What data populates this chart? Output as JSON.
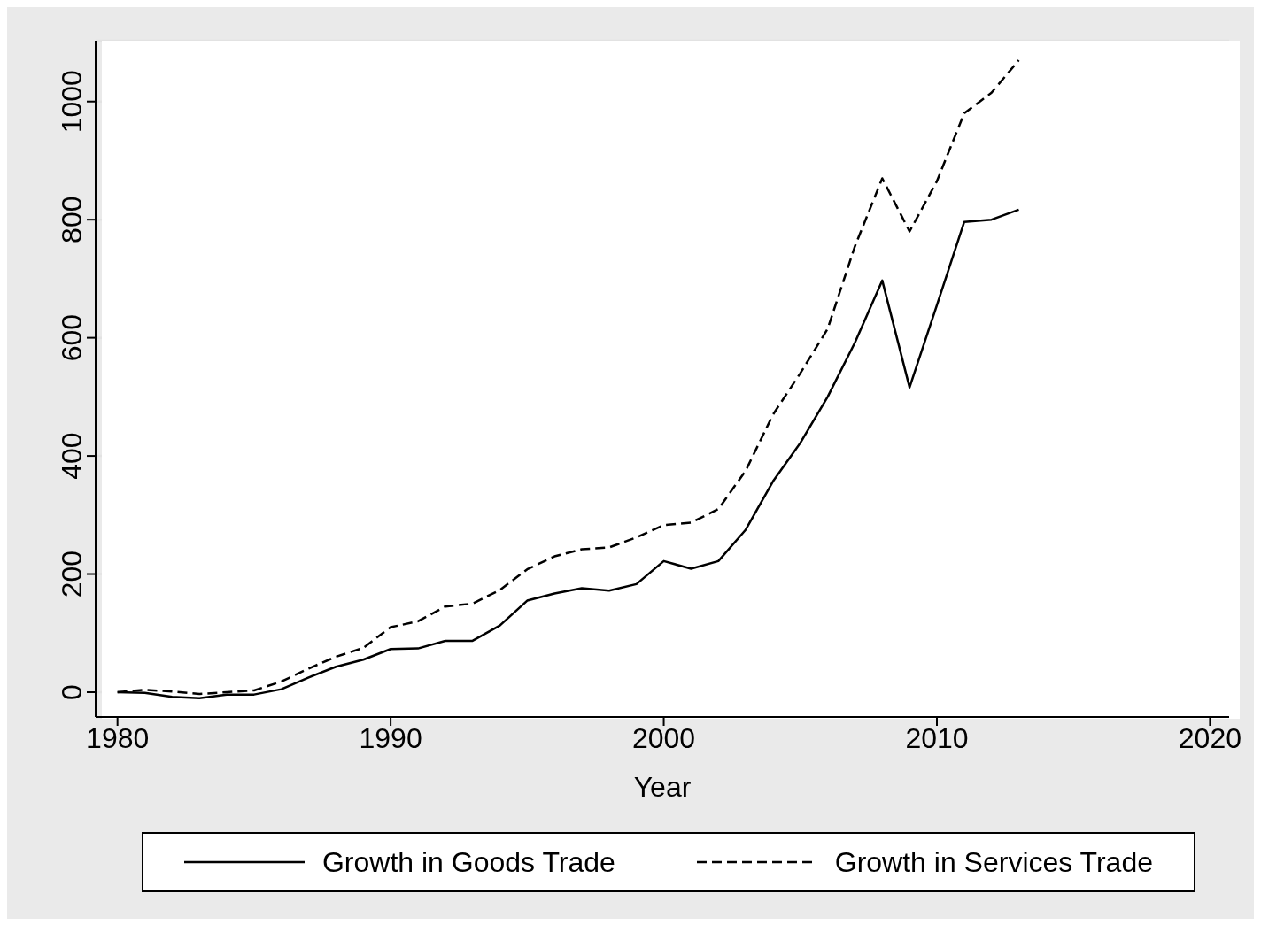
{
  "chart_data": {
    "type": "line",
    "xlabel": "Year",
    "x": [
      1980,
      1981,
      1982,
      1983,
      1984,
      1985,
      1986,
      1987,
      1988,
      1989,
      1990,
      1991,
      1992,
      1993,
      1994,
      1995,
      1996,
      1997,
      1998,
      1999,
      2000,
      2001,
      2002,
      2003,
      2004,
      2005,
      2006,
      2007,
      2008,
      2009,
      2010,
      2011,
      2012,
      2013
    ],
    "series": [
      {
        "name": "Growth in Goods Trade",
        "color": "#000000",
        "line_style": "solid",
        "values": [
          0,
          -1,
          -8,
          -10,
          -4,
          -4,
          5,
          25,
          43,
          55,
          73,
          74,
          87,
          87,
          113,
          155,
          167,
          176,
          172,
          183,
          222,
          209,
          222,
          275,
          357,
          422,
          500,
          592,
          697,
          516,
          655,
          796,
          800,
          817
        ]
      },
      {
        "name": "Growth in Services Trade",
        "color": "#000000",
        "line_style": "dashed",
        "values": [
          0,
          4,
          1,
          -3,
          0,
          3,
          18,
          40,
          60,
          75,
          110,
          120,
          145,
          150,
          173,
          208,
          230,
          242,
          245,
          262,
          283,
          287,
          310,
          375,
          470,
          540,
          615,
          755,
          870,
          780,
          865,
          980,
          1015,
          1070
        ]
      }
    ],
    "xlim": [
      1979.2,
      2020.7
    ],
    "xticks": [
      1980,
      1990,
      2000,
      2010,
      2020
    ],
    "ylim": [
      -42,
      1103
    ],
    "yticks": [
      0,
      200,
      400,
      600,
      800,
      1000
    ],
    "grid": "y",
    "legend": "bottom",
    "marker": "none"
  }
}
